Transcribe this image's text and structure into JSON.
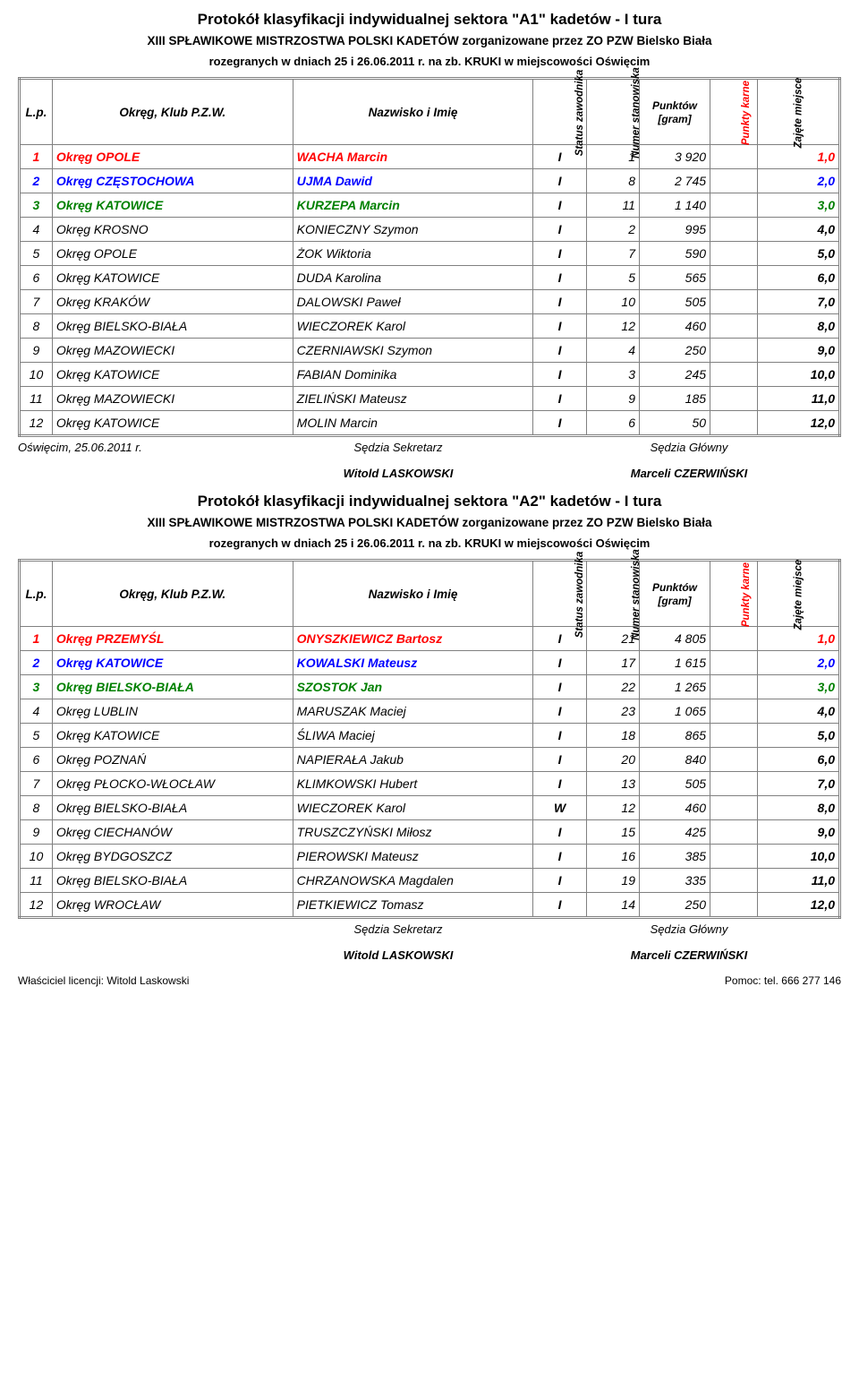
{
  "section1": {
    "title_main": "Protokół klasyfikacji indywidualnej sektora \"A1\" kadetów - I tura",
    "title_sub": "XIII SPŁAWIKOWE MISTRZOSTWA POLSKI KADETÓW zorganizowane przez ZO PZW Bielsko Biała",
    "title_line3": "rozegranych w dniach 25 i 26.06.2011 r. na zb. KRUKI w miejscowości Oświęcim",
    "headers": {
      "lp": "L.p.",
      "okreg": "Okręg, Klub P.Z.W.",
      "nazwisko": "Nazwisko i Imię",
      "status": "Status\nzawodnika",
      "numer": "Numer\nstanowiska",
      "punktow": "Punktów\n[gram]",
      "punkty_karne": "Punkty\nkarne",
      "zajete": "Zajęte\nmiejsce"
    },
    "rows": [
      {
        "lp": "1",
        "okr": "Okręg OPOLE",
        "name": "WACHA Marcin",
        "st": "I",
        "num": "1",
        "pts": "3 920",
        "pk": "",
        "zm": "1,0",
        "color": "red"
      },
      {
        "lp": "2",
        "okr": "Okręg CZĘSTOCHOWA",
        "name": "UJMA Dawid",
        "st": "I",
        "num": "8",
        "pts": "2 745",
        "pk": "",
        "zm": "2,0",
        "color": "blue"
      },
      {
        "lp": "3",
        "okr": "Okręg KATOWICE",
        "name": "KURZEPA Marcin",
        "st": "I",
        "num": "11",
        "pts": "1 140",
        "pk": "",
        "zm": "3,0",
        "color": "green"
      },
      {
        "lp": "4",
        "okr": "Okręg KROSNO",
        "name": "KONIECZNY Szymon",
        "st": "I",
        "num": "2",
        "pts": "995",
        "pk": "",
        "zm": "4,0",
        "color": ""
      },
      {
        "lp": "5",
        "okr": "Okręg OPOLE",
        "name": "ŻOK Wiktoria",
        "st": "I",
        "num": "7",
        "pts": "590",
        "pk": "",
        "zm": "5,0",
        "color": ""
      },
      {
        "lp": "6",
        "okr": "Okręg KATOWICE",
        "name": "DUDA Karolina",
        "st": "I",
        "num": "5",
        "pts": "565",
        "pk": "",
        "zm": "6,0",
        "color": ""
      },
      {
        "lp": "7",
        "okr": "Okręg KRAKÓW",
        "name": "DALOWSKI Paweł",
        "st": "I",
        "num": "10",
        "pts": "505",
        "pk": "",
        "zm": "7,0",
        "color": ""
      },
      {
        "lp": "8",
        "okr": "Okręg BIELSKO-BIAŁA",
        "name": "WIECZOREK Karol",
        "st": "I",
        "num": "12",
        "pts": "460",
        "pk": "",
        "zm": "8,0",
        "color": ""
      },
      {
        "lp": "9",
        "okr": "Okręg MAZOWIECKI",
        "name": "CZERNIAWSKI Szymon",
        "st": "I",
        "num": "4",
        "pts": "250",
        "pk": "",
        "zm": "9,0",
        "color": ""
      },
      {
        "lp": "10",
        "okr": "Okręg KATOWICE",
        "name": "FABIAN Dominika",
        "st": "I",
        "num": "3",
        "pts": "245",
        "pk": "",
        "zm": "10,0",
        "color": ""
      },
      {
        "lp": "11",
        "okr": "Okręg MAZOWIECKI",
        "name": "ZIELIŃSKI Mateusz",
        "st": "I",
        "num": "9",
        "pts": "185",
        "pk": "",
        "zm": "11,0",
        "color": ""
      },
      {
        "lp": "12",
        "okr": "Okręg KATOWICE",
        "name": "MOLIN Marcin",
        "st": "I",
        "num": "6",
        "pts": "50",
        "pk": "",
        "zm": "12,0",
        "color": ""
      }
    ],
    "sig": {
      "left": "Oświęcim, 25.06.2011 r.",
      "mid_top": "Sędzia Sekretarz",
      "right_top": "Sędzia Główny",
      "mid_name": "Witold LASKOWSKI",
      "right_name": "Marceli CZERWIŃSKI"
    }
  },
  "section2": {
    "title_main": "Protokół klasyfikacji indywidualnej sektora \"A2\" kadetów - I tura",
    "title_sub": "XIII SPŁAWIKOWE MISTRZOSTWA POLSKI KADETÓW zorganizowane przez ZO PZW Bielsko Biała",
    "title_line3": "rozegranych w dniach 25 i 26.06.2011 r. na zb. KRUKI w miejscowości Oświęcim",
    "rows": [
      {
        "lp": "1",
        "okr": "Okręg PRZEMYŚL",
        "name": "ONYSZKIEWICZ Bartosz",
        "st": "I",
        "num": "21",
        "pts": "4 805",
        "pk": "",
        "zm": "1,0",
        "color": "red"
      },
      {
        "lp": "2",
        "okr": "Okręg KATOWICE",
        "name": "KOWALSKI Mateusz",
        "st": "I",
        "num": "17",
        "pts": "1 615",
        "pk": "",
        "zm": "2,0",
        "color": "blue"
      },
      {
        "lp": "3",
        "okr": "Okręg BIELSKO-BIAŁA",
        "name": "SZOSTOK Jan",
        "st": "I",
        "num": "22",
        "pts": "1 265",
        "pk": "",
        "zm": "3,0",
        "color": "green"
      },
      {
        "lp": "4",
        "okr": "Okręg LUBLIN",
        "name": "MARUSZAK Maciej",
        "st": "I",
        "num": "23",
        "pts": "1 065",
        "pk": "",
        "zm": "4,0",
        "color": ""
      },
      {
        "lp": "5",
        "okr": "Okręg KATOWICE",
        "name": "ŚLIWA Maciej",
        "st": "I",
        "num": "18",
        "pts": "865",
        "pk": "",
        "zm": "5,0",
        "color": ""
      },
      {
        "lp": "6",
        "okr": "Okręg POZNAŃ",
        "name": "NAPIERAŁA Jakub",
        "st": "I",
        "num": "20",
        "pts": "840",
        "pk": "",
        "zm": "6,0",
        "color": ""
      },
      {
        "lp": "7",
        "okr": "Okręg PŁOCKO-WŁOCŁAW",
        "name": "KLIMKOWSKI Hubert",
        "st": "I",
        "num": "13",
        "pts": "505",
        "pk": "",
        "zm": "7,0",
        "color": ""
      },
      {
        "lp": "8",
        "okr": "Okręg BIELSKO-BIAŁA",
        "name": "WIECZOREK Karol",
        "st": "W",
        "num": "12",
        "pts": "460",
        "pk": "",
        "zm": "8,0",
        "color": ""
      },
      {
        "lp": "9",
        "okr": "Okręg CIECHANÓW",
        "name": "TRUSZCZYŃSKI Miłosz",
        "st": "I",
        "num": "15",
        "pts": "425",
        "pk": "",
        "zm": "9,0",
        "color": ""
      },
      {
        "lp": "10",
        "okr": "Okręg BYDGOSZCZ",
        "name": "PIEROWSKI Mateusz",
        "st": "I",
        "num": "16",
        "pts": "385",
        "pk": "",
        "zm": "10,0",
        "color": ""
      },
      {
        "lp": "11",
        "okr": "Okręg BIELSKO-BIAŁA",
        "name": "CHRZANOWSKA Magdalen",
        "st": "I",
        "num": "19",
        "pts": "335",
        "pk": "",
        "zm": "11,0",
        "color": ""
      },
      {
        "lp": "12",
        "okr": "Okręg WROCŁAW",
        "name": "PIETKIEWICZ Tomasz",
        "st": "I",
        "num": "14",
        "pts": "250",
        "pk": "",
        "zm": "12,0",
        "color": ""
      }
    ],
    "sig": {
      "left": "",
      "mid_top": "Sędzia Sekretarz",
      "right_top": "Sędzia Główny",
      "mid_name": "Witold LASKOWSKI",
      "right_name": "Marceli CZERWIŃSKI"
    }
  },
  "footer": {
    "left": "Właściciel licencji: Witold Laskowski",
    "right": "Pomoc: tel. 666 277 146"
  }
}
